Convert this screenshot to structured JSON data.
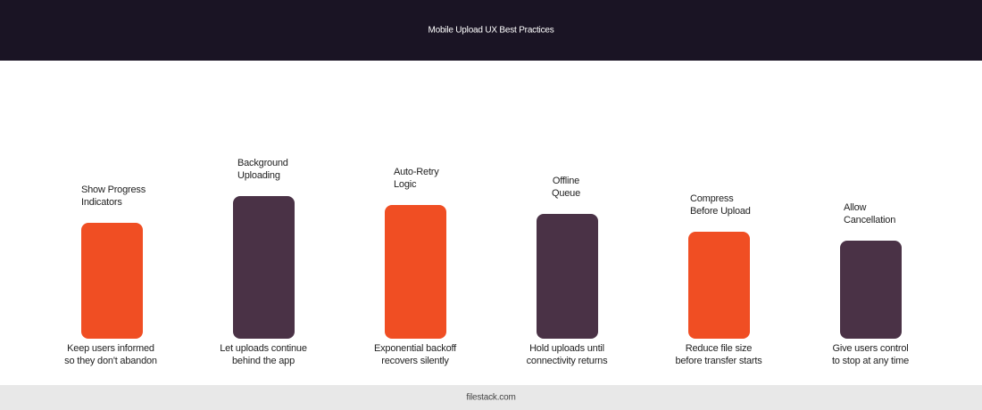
{
  "header": {
    "title": "Mobile Upload UX Best Practices"
  },
  "items": [
    {
      "title": [
        "Show Progress",
        "Indicators"
      ],
      "description": [
        "Keep users informed",
        "so they don't abandon"
      ]
    },
    {
      "title": [
        "Background",
        "Uploading"
      ],
      "description": [
        "Let uploads continue",
        "behind the app"
      ]
    },
    {
      "title": [
        "Auto-Retry",
        "Logic"
      ],
      "description": [
        "Exponential backoff",
        "recovers silently"
      ]
    },
    {
      "title": [
        "Offline",
        "Queue"
      ],
      "description": [
        "Hold uploads until",
        "connectivity returns"
      ]
    },
    {
      "title": [
        "Compress",
        "Before Upload"
      ],
      "description": [
        "Reduce file size",
        "before transfer starts"
      ]
    },
    {
      "title": [
        "Allow",
        "Cancellation"
      ],
      "description": [
        "Give users control",
        "to stop at any time"
      ]
    }
  ],
  "footer": {
    "text": "filestack.com"
  }
}
